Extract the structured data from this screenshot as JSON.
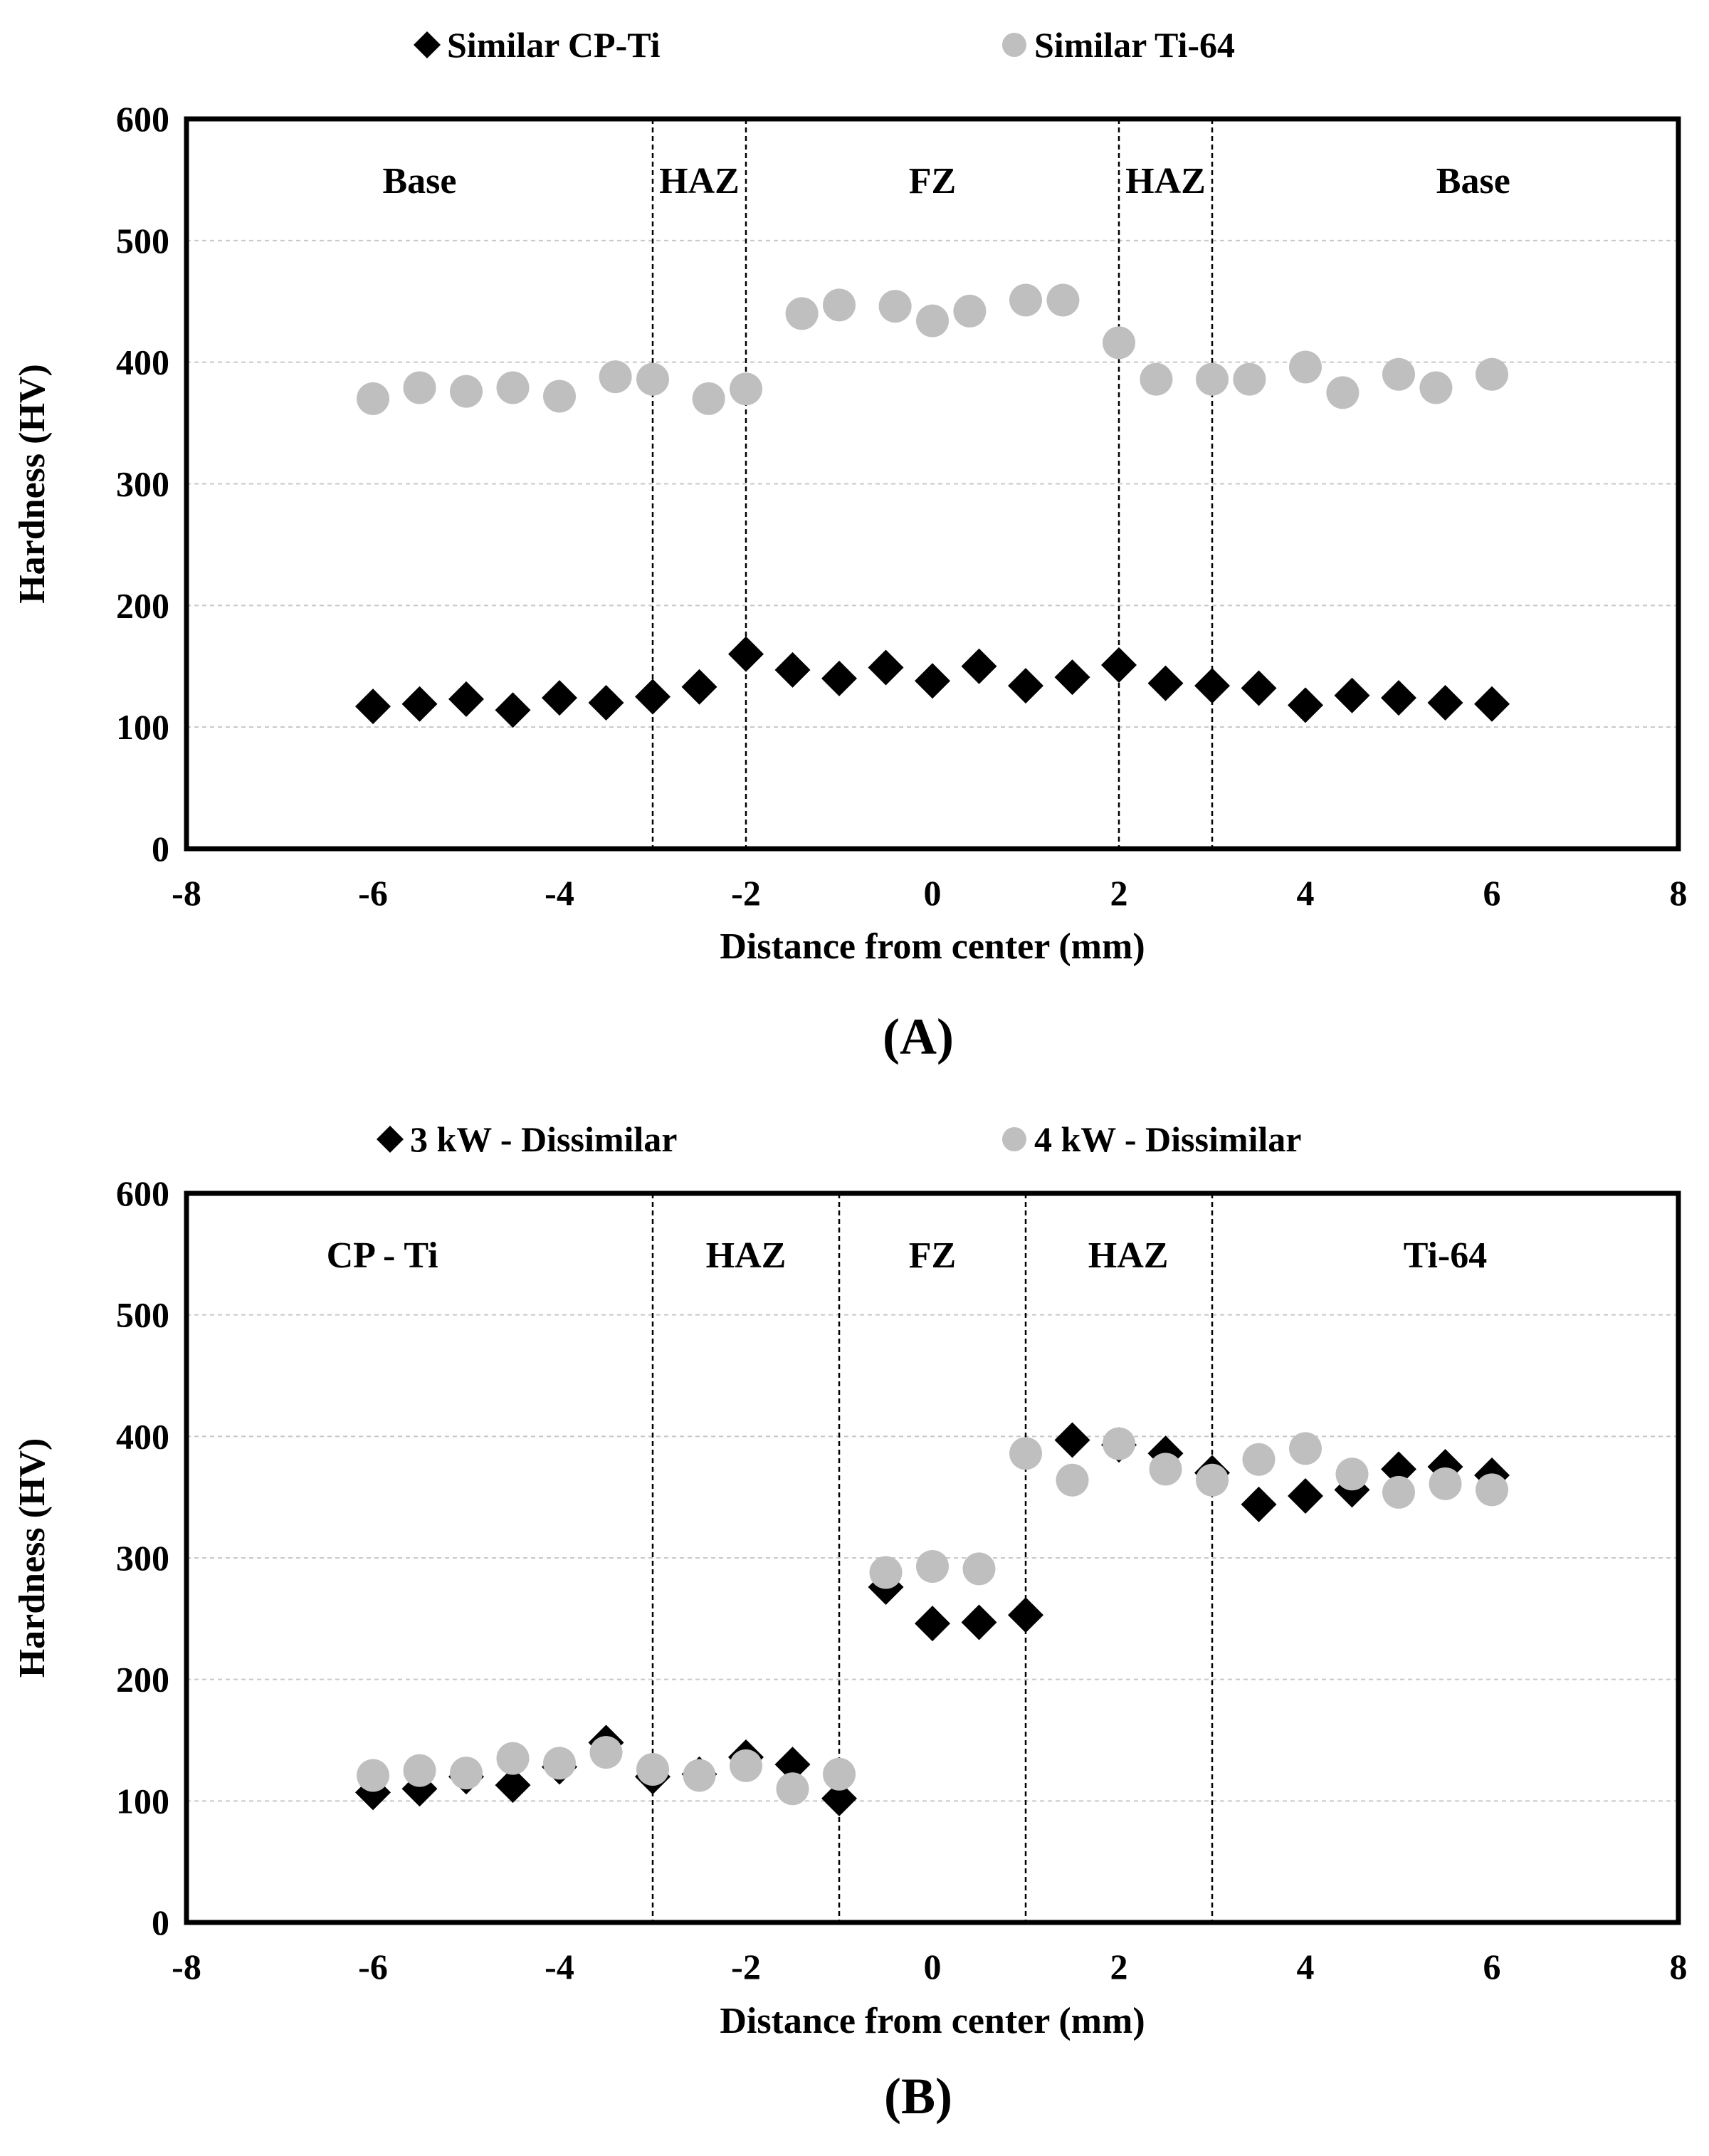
{
  "chart_data": [
    {
      "type": "scatter",
      "panel_label": "(A)",
      "xlabel": "Distance from center (mm)",
      "ylabel": "Hardness (HV)",
      "xlim": [
        -8,
        8
      ],
      "ylim": [
        0,
        600
      ],
      "xticks": [
        -8,
        -6,
        -4,
        -2,
        0,
        2,
        4,
        6,
        8
      ],
      "yticks": [
        0,
        100,
        200,
        300,
        400,
        500,
        600
      ],
      "grid": "horizontal dashed",
      "legend_position": "top",
      "zone_boundaries": [
        -3,
        -2,
        2,
        3
      ],
      "zones": [
        {
          "label": "Base",
          "x": -5.5
        },
        {
          "label": "HAZ",
          "x": -2.5
        },
        {
          "label": "FZ",
          "x": 0
        },
        {
          "label": "HAZ",
          "x": 2.5
        },
        {
          "label": "Base",
          "x": 5.8
        }
      ],
      "series": [
        {
          "name": "Similar CP-Ti",
          "marker": "diamond",
          "color": "#000000",
          "x": [
            -6,
            -5.5,
            -5,
            -4.5,
            -4,
            -3.5,
            -3,
            -2.5,
            -2,
            -1.5,
            -1,
            -0.5,
            0,
            0.5,
            1,
            1.5,
            2,
            2.5,
            3,
            3.5,
            4,
            4.5,
            5,
            5.5,
            6
          ],
          "y": [
            117,
            119,
            123,
            114,
            124,
            120,
            125,
            133,
            160,
            147,
            140,
            149,
            138,
            150,
            134,
            141,
            151,
            136,
            134,
            132,
            118,
            126,
            124,
            120,
            119
          ]
        },
        {
          "name": "Similar Ti-64",
          "marker": "circle",
          "color": "#bfbfbf",
          "x": [
            -6,
            -5.5,
            -5,
            -4.5,
            -4,
            -3.4,
            -3,
            -2.4,
            -2,
            -1.4,
            -1,
            -0.4,
            0,
            0.4,
            1,
            1.4,
            2,
            2.4,
            3,
            3.4,
            4,
            4.4,
            5,
            5.4,
            6
          ],
          "y": [
            370,
            379,
            376,
            379,
            372,
            388,
            386,
            370,
            378,
            440,
            447,
            446,
            434,
            442,
            451,
            451,
            416,
            386,
            386,
            386,
            396,
            375,
            390,
            379,
            390
          ]
        }
      ]
    },
    {
      "type": "scatter",
      "panel_label": "(B)",
      "xlabel": "Distance from center (mm)",
      "ylabel": "Hardness (HV)",
      "xlim": [
        -8,
        8
      ],
      "ylim": [
        0,
        600
      ],
      "xticks": [
        -8,
        -6,
        -4,
        -2,
        0,
        2,
        4,
        6,
        8
      ],
      "yticks": [
        0,
        100,
        200,
        300,
        400,
        500,
        600
      ],
      "grid": "horizontal dashed",
      "legend_position": "top",
      "zone_boundaries": [
        -3,
        -1,
        1,
        3
      ],
      "zones": [
        {
          "label": "CP - Ti",
          "x": -5.9
        },
        {
          "label": "HAZ",
          "x": -2
        },
        {
          "label": "FZ",
          "x": 0
        },
        {
          "label": "HAZ",
          "x": 2.1
        },
        {
          "label": "Ti-64",
          "x": 5.5
        }
      ],
      "series": [
        {
          "name": "3 kW - Dissimilar",
          "marker": "diamond",
          "color": "#000000",
          "x": [
            -6,
            -5.5,
            -5,
            -4.5,
            -4,
            -3.5,
            -3,
            -2.5,
            -2,
            -1.5,
            -1,
            -0.5,
            0,
            0.5,
            1,
            1.5,
            2,
            2.5,
            3,
            3.5,
            4,
            4.5,
            5,
            5.5,
            6
          ],
          "y": [
            107,
            110,
            120,
            113,
            128,
            148,
            120,
            122,
            136,
            130,
            102,
            276,
            246,
            247,
            253,
            397,
            393,
            386,
            370,
            344,
            351,
            356,
            373,
            375,
            368
          ]
        },
        {
          "name": "4 kW - Dissimilar",
          "marker": "circle",
          "color": "#bfbfbf",
          "x": [
            -6,
            -5.5,
            -5,
            -4.5,
            -4,
            -3.5,
            -3,
            -2.5,
            -2,
            -1.5,
            -1,
            -0.5,
            0,
            0.5,
            1,
            1.5,
            2,
            2.5,
            3,
            3.5,
            4,
            4.5,
            5,
            5.5,
            6
          ],
          "y": [
            121,
            125,
            123,
            135,
            131,
            140,
            126,
            121,
            129,
            110,
            122,
            288,
            293,
            291,
            386,
            364,
            394,
            373,
            364,
            381,
            390,
            369,
            354,
            361,
            356
          ]
        }
      ]
    }
  ]
}
